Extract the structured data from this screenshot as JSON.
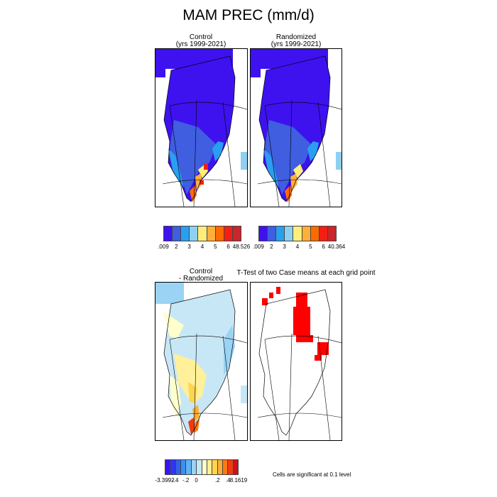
{
  "title": "MAM PREC (mm/d)",
  "panels": {
    "control": {
      "title": "Control",
      "subtitle": "(yrs 1999-2021)"
    },
    "randomized": {
      "title": "Randomized",
      "subtitle": "(yrs 1999-2021)"
    },
    "difference": {
      "title": "Control",
      "subtitle": "- Randomized"
    },
    "ttest": {
      "title": "T-Test of two Case means at each grid point"
    }
  },
  "colorbars": {
    "control": {
      "colors": [
        "#3d12ef",
        "#3f5ee0",
        "#2a9ff0",
        "#8fd0f0",
        "#ffef7a",
        "#ffb03a",
        "#ff6a00",
        "#f21f14",
        "#c9252b"
      ],
      "labels": [
        ".009",
        "2",
        "3",
        "4",
        "5",
        "6",
        "48.526"
      ]
    },
    "randomized": {
      "colors": [
        "#3d12ef",
        "#3f5ee0",
        "#2a9ff0",
        "#8fd0f0",
        "#ffef7a",
        "#ffb03a",
        "#ff6a00",
        "#f21f14",
        "#c9252b"
      ],
      "labels": [
        ".009",
        "2",
        "3",
        "4",
        "5",
        "6",
        "40.364"
      ]
    },
    "difference": {
      "colors": [
        "#3d12ef",
        "#2f35f0",
        "#2f62f2",
        "#3b8ff2",
        "#5fb3f5",
        "#9ad3f3",
        "#c7e7f6",
        "#ffffcc",
        "#fff099",
        "#ffd44e",
        "#ffae33",
        "#ff7a12",
        "#f23a0f",
        "#c9141a"
      ],
      "labels": [
        "-3.3992",
        "-.4",
        "-.2",
        "0",
        "",
        ".2",
        ".4",
        "8.1619"
      ]
    }
  },
  "significance_note": "Cells are significant at 0.1 level",
  "chart_data": [
    {
      "type": "heatmap",
      "title": "Control",
      "subtitle": "(yrs 1999-2021)",
      "variable": "MAM PREC (mm/d)",
      "levels": [
        2,
        3,
        4,
        5,
        6
      ],
      "min": 0.009,
      "max": 48.526,
      "description_of_field": "low (<2) over ice-sheet interior, 2-4 along west coast, 4-6+ along southeast coast and south tip"
    },
    {
      "type": "heatmap",
      "title": "Randomized",
      "subtitle": "(yrs 1999-2021)",
      "levels": [
        2,
        3,
        4,
        5,
        6
      ],
      "min": 0.009,
      "max": 40.364
    },
    {
      "type": "heatmap",
      "title": "Control - Randomized",
      "levels": [
        -0.4,
        -0.2,
        0,
        0.2,
        0.4
      ],
      "min": -3.3992,
      "max": 8.1619
    },
    {
      "type": "heatmap",
      "title": "T-Test of two Case means at each grid point",
      "note": "Cells are significant at 0.1 level"
    }
  ]
}
